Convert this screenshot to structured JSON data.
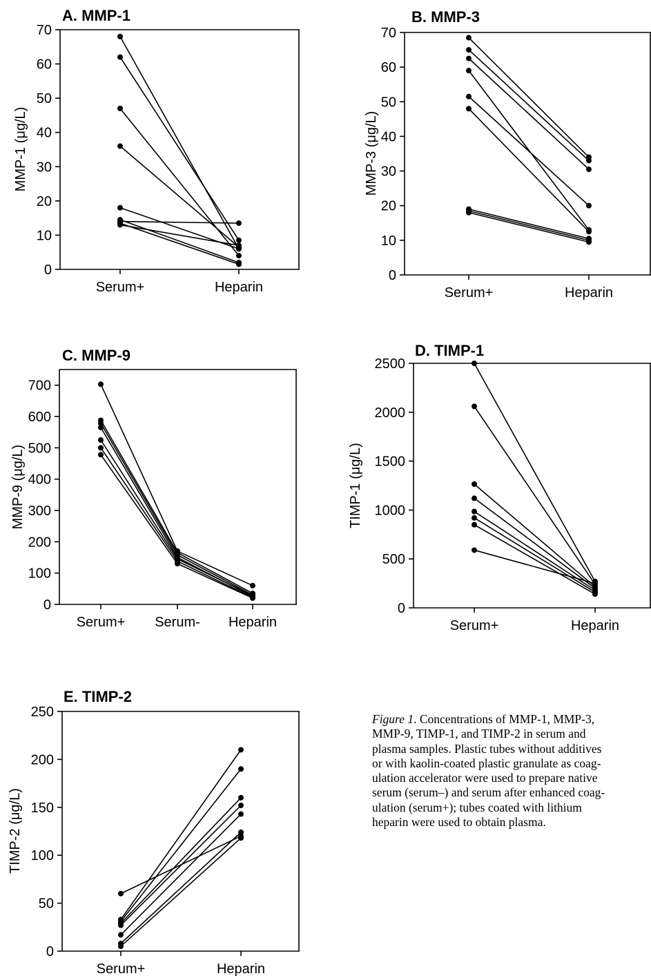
{
  "chart_data": [
    {
      "type": "line",
      "title": "A. MMP-1",
      "xlabel": "",
      "ylabel": "MMP-1 (μg/L)",
      "categories": [
        "Serum+",
        "Heparin"
      ],
      "ylim": [
        0,
        70
      ],
      "yticks": [
        0,
        10,
        20,
        30,
        40,
        50,
        60,
        70
      ],
      "series": [
        {
          "values": [
            68,
            6
          ]
        },
        {
          "values": [
            62,
            8.5
          ]
        },
        {
          "values": [
            47,
            4
          ]
        },
        {
          "values": [
            36,
            6.5
          ]
        },
        {
          "values": [
            18,
            6
          ]
        },
        {
          "values": [
            14.5,
            2
          ]
        },
        {
          "values": [
            14,
            13.5
          ]
        },
        {
          "values": [
            13.5,
            1.5
          ]
        },
        {
          "values": [
            13,
            7
          ]
        }
      ]
    },
    {
      "type": "line",
      "title": "B. MMP-3",
      "xlabel": "",
      "ylabel": "MMP-3 (μg/L)",
      "categories": [
        "Serum+",
        "Heparin"
      ],
      "ylim": [
        0,
        70
      ],
      "yticks": [
        0,
        10,
        20,
        30,
        40,
        50,
        60,
        70
      ],
      "series": [
        {
          "values": [
            68.5,
            34
          ]
        },
        {
          "values": [
            65,
            33
          ]
        },
        {
          "values": [
            62.5,
            30.5
          ]
        },
        {
          "values": [
            59,
            13
          ]
        },
        {
          "values": [
            51.5,
            20
          ]
        },
        {
          "values": [
            48,
            12.5
          ]
        },
        {
          "values": [
            19,
            10.5
          ]
        },
        {
          "values": [
            18.5,
            10
          ]
        },
        {
          "values": [
            18,
            9.5
          ]
        }
      ]
    },
    {
      "type": "line",
      "title": "C. MMP-9",
      "xlabel": "",
      "ylabel": "MMP-9 (μg/L)",
      "categories": [
        "Serum+",
        "Serum-",
        "Heparin"
      ],
      "ylim": [
        0,
        750
      ],
      "yticks": [
        0,
        100,
        200,
        300,
        400,
        500,
        600,
        700
      ],
      "series": [
        {
          "values": [
            703,
            170,
            60
          ]
        },
        {
          "values": [
            588,
            165,
            35
          ]
        },
        {
          "values": [
            578,
            158,
            30
          ]
        },
        {
          "values": [
            565,
            150,
            25
          ]
        },
        {
          "values": [
            525,
            145,
            28
          ]
        },
        {
          "values": [
            500,
            138,
            22
          ]
        },
        {
          "values": [
            478,
            130,
            20
          ]
        }
      ]
    },
    {
      "type": "line",
      "title": "D. TIMP-1",
      "xlabel": "",
      "ylabel": "TIMP-1 (μg/L)",
      "categories": [
        "Serum+",
        "Heparin"
      ],
      "ylim": [
        0,
        2500
      ],
      "yticks": [
        0,
        500,
        1000,
        1500,
        2000,
        2500
      ],
      "series": [
        {
          "values": [
            2500,
            270
          ]
        },
        {
          "values": [
            2060,
            240
          ]
        },
        {
          "values": [
            1265,
            215
          ]
        },
        {
          "values": [
            1120,
            200
          ]
        },
        {
          "values": [
            985,
            180
          ]
        },
        {
          "values": [
            920,
            160
          ]
        },
        {
          "values": [
            850,
            140
          ]
        },
        {
          "values": [
            590,
            250
          ]
        }
      ]
    },
    {
      "type": "line",
      "title": "E. TIMP-2",
      "xlabel": "",
      "ylabel": "TIMP-2 (μg/L)",
      "categories": [
        "Serum+",
        "Heparin"
      ],
      "ylim": [
        0,
        250
      ],
      "yticks": [
        0,
        50,
        100,
        150,
        200,
        250
      ],
      "series": [
        {
          "values": [
            60,
            120
          ]
        },
        {
          "values": [
            33,
            210
          ]
        },
        {
          "values": [
            31,
            190
          ]
        },
        {
          "values": [
            29,
            160
          ]
        },
        {
          "values": [
            27,
            152
          ]
        },
        {
          "values": [
            17,
            143
          ]
        },
        {
          "values": [
            8,
            124
          ]
        },
        {
          "values": [
            5,
            118
          ]
        }
      ]
    }
  ],
  "caption": {
    "lead": "Figure 1",
    "lines": [
      ". Concentrations of MMP-1, MMP-3,",
      "MMP-9, TIMP-1, and TIMP-2 in serum and",
      "plasma samples. Plastic tubes without additives",
      "or with kaolin-coated plastic granulate as coag-",
      "ulation accelerator were used to prepare native",
      "serum (serum–) and serum after enhanced coag-",
      "ulation (serum+); tubes coated with lithium",
      "heparin were used to obtain plasma."
    ]
  }
}
